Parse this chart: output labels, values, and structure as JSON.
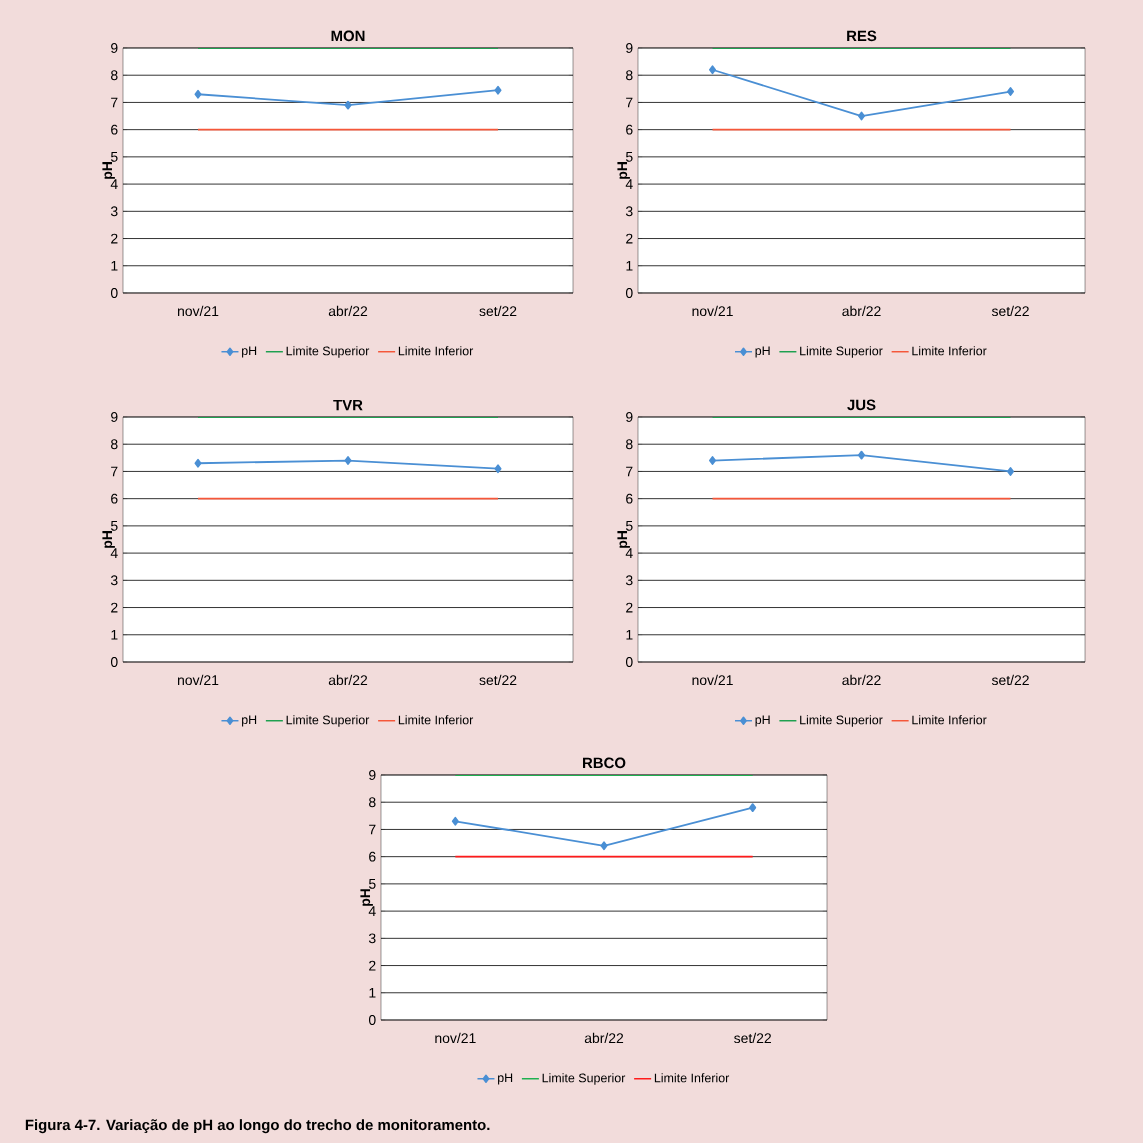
{
  "chart_data": [
    {
      "type": "line",
      "title": "MON",
      "ylabel": "pH",
      "categories": [
        "nov/21",
        "abr/22",
        "set/22"
      ],
      "ylim": [
        0,
        9
      ],
      "yticks": [
        0,
        1,
        2,
        3,
        4,
        5,
        6,
        7,
        8,
        9
      ],
      "grid": "y",
      "legend": "bottom",
      "marker": "diamond",
      "series": [
        {
          "name": "pH",
          "color": "#4a8fd4",
          "values": [
            7.3,
            6.9,
            7.45
          ]
        },
        {
          "name": "Limite Superior",
          "color": "#1fa050",
          "marker": "none",
          "values": [
            9,
            9,
            9
          ]
        },
        {
          "name": "Limite Inferior",
          "color": "#f5573a",
          "marker": "none",
          "values": [
            6,
            6,
            6
          ]
        }
      ]
    },
    {
      "type": "line",
      "title": "RES",
      "ylabel": "pH",
      "categories": [
        "nov/21",
        "abr/22",
        "set/22"
      ],
      "ylim": [
        0,
        9
      ],
      "yticks": [
        0,
        1,
        2,
        3,
        4,
        5,
        6,
        7,
        8,
        9
      ],
      "grid": "y",
      "legend": "bottom",
      "marker": "diamond",
      "series": [
        {
          "name": "pH",
          "color": "#4a8fd4",
          "values": [
            8.2,
            6.5,
            7.4
          ]
        },
        {
          "name": "Limite Superior",
          "color": "#1fa050",
          "marker": "none",
          "values": [
            9,
            9,
            9
          ]
        },
        {
          "name": "Limite Inferior",
          "color": "#f5573a",
          "marker": "none",
          "values": [
            6,
            6,
            6
          ]
        }
      ]
    },
    {
      "type": "line",
      "title": "TVR",
      "ylabel": "pH",
      "categories": [
        "nov/21",
        "abr/22",
        "set/22"
      ],
      "ylim": [
        0,
        9
      ],
      "yticks": [
        0,
        1,
        2,
        3,
        4,
        5,
        6,
        7,
        8,
        9
      ],
      "grid": "y",
      "legend": "bottom",
      "marker": "diamond",
      "series": [
        {
          "name": "pH",
          "color": "#4a8fd4",
          "values": [
            7.3,
            7.4,
            7.1
          ]
        },
        {
          "name": "Limite Superior",
          "color": "#1fa050",
          "marker": "none",
          "values": [
            9,
            9,
            9
          ]
        },
        {
          "name": "Limite Inferior",
          "color": "#f5573a",
          "marker": "none",
          "values": [
            6,
            6,
            6
          ]
        }
      ]
    },
    {
      "type": "line",
      "title": "JUS",
      "ylabel": "pH",
      "categories": [
        "nov/21",
        "abr/22",
        "set/22"
      ],
      "ylim": [
        0,
        9
      ],
      "yticks": [
        0,
        1,
        2,
        3,
        4,
        5,
        6,
        7,
        8,
        9
      ],
      "grid": "y",
      "legend": "bottom",
      "marker": "diamond",
      "series": [
        {
          "name": "pH",
          "color": "#4a8fd4",
          "values": [
            7.4,
            7.6,
            7.0
          ]
        },
        {
          "name": "Limite Superior",
          "color": "#1fa050",
          "marker": "none",
          "values": [
            9,
            9,
            9
          ]
        },
        {
          "name": "Limite Inferior",
          "color": "#f5573a",
          "marker": "none",
          "values": [
            6,
            6,
            6
          ]
        }
      ]
    },
    {
      "type": "line",
      "title": "RBCO",
      "ylabel": "pH",
      "categories": [
        "nov/21",
        "abr/22",
        "set/22"
      ],
      "ylim": [
        0,
        9
      ],
      "yticks": [
        0,
        1,
        2,
        3,
        4,
        5,
        6,
        7,
        8,
        9
      ],
      "grid": "y",
      "legend": "bottom",
      "marker": "diamond",
      "annotations": [
        "Figura 4-7. Variação de pH ao longo do trecho de monitoramento."
      ],
      "series": [
        {
          "name": "pH",
          "color": "#4a8fd4",
          "values": [
            7.3,
            6.4,
            7.8
          ]
        },
        {
          "name": "Limite Superior",
          "color": "#1fb050",
          "marker": "none",
          "values": [
            9,
            9,
            9
          ]
        },
        {
          "name": "Limite Inferior",
          "color": "#ff1a1a",
          "marker": "none",
          "values": [
            6,
            6,
            6
          ]
        }
      ]
    }
  ]
}
